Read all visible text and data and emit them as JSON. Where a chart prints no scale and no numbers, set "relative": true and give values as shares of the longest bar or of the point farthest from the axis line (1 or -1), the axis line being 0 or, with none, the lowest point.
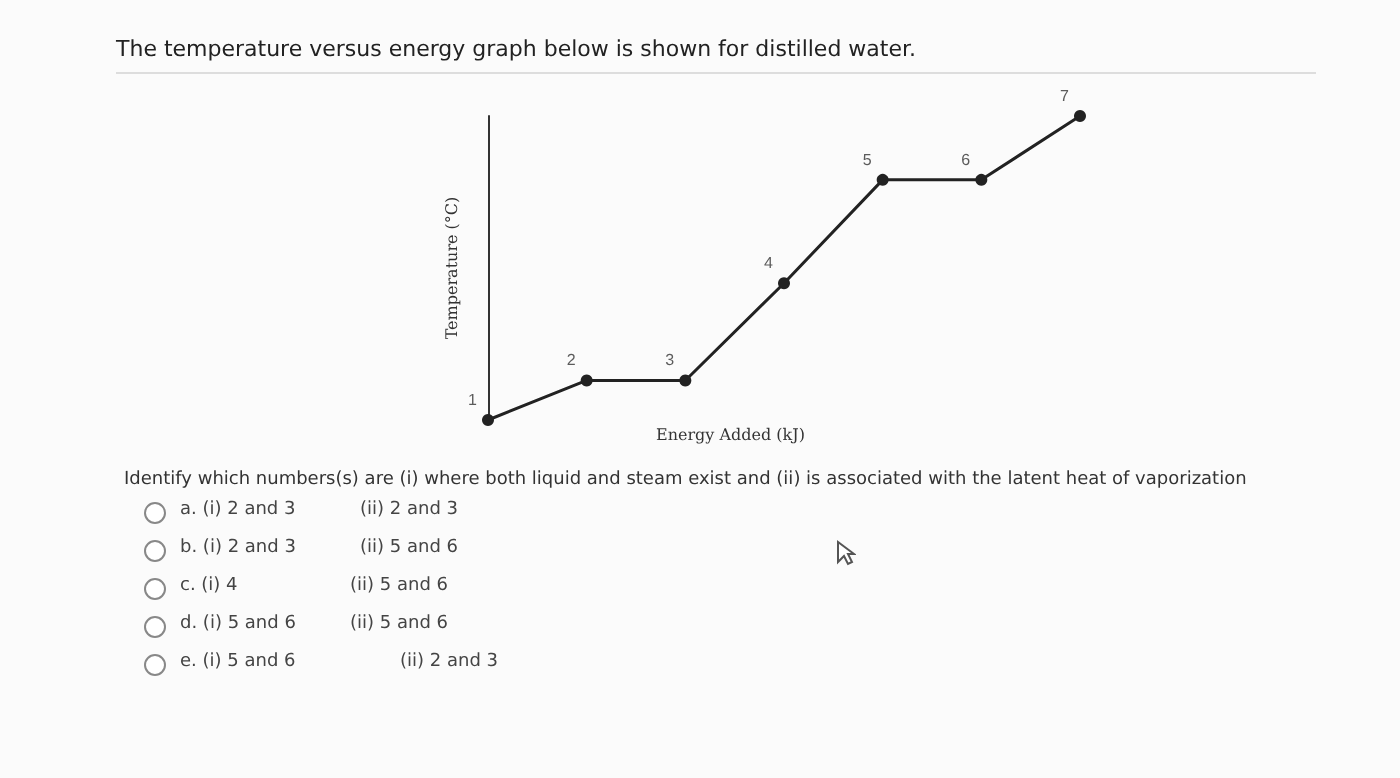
{
  "chart_data": {
    "type": "line",
    "title": "The temperature versus energy graph below is shown for distilled water.",
    "xlabel": "Energy Added (kJ)",
    "ylabel": "Temperature (°C)",
    "relative": true,
    "categories": [
      null,
      null,
      null,
      null,
      null,
      null,
      null
    ],
    "series": [
      {
        "color": "#222222",
        "values": [
          0,
          0.13,
          0.13,
          0.45,
          0.79,
          0.79,
          1
        ]
      }
    ],
    "marker": "circle",
    "line_style": "solid",
    "annotations": [
      {
        "text": "1",
        "y": 0
      },
      {
        "text": "2",
        "y": 0.13
      },
      {
        "text": "3",
        "y": 0.13
      },
      {
        "text": "4",
        "y": 0.45
      },
      {
        "text": "5",
        "y": 0.79
      },
      {
        "text": "6",
        "y": 0.79
      },
      {
        "text": "7",
        "y": 1
      },
      "Identify which numbers(s) are (i) where both liquid and steam exist and (ii) is associated with the latent heat of vaporization",
      "a. (i) 2 and 3",
      "(ii) 2 and 3",
      "b. (i) 2 and 3",
      "(ii) 5 and 6",
      "c. (i) 4",
      "(ii) 5 and 6",
      "d. (i) 5 and 6",
      "(ii) 5 and 6",
      "e. (i) 5 and 6",
      "(ii) 2 and 3"
    ]
  }
}
